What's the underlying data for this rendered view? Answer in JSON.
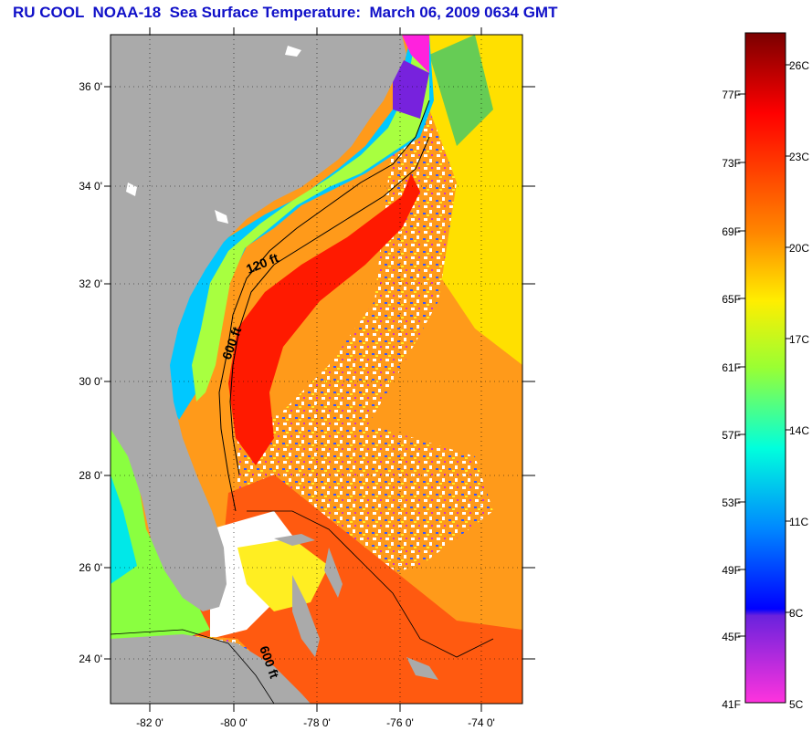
{
  "title": "RU COOL  NOAA-18  Sea Surface Temperature:  March 06, 2009 0634 GMT",
  "map": {
    "lat_labels": [
      "36 0'",
      "34 0'",
      "32 0'",
      "30 0'",
      "28 0'",
      "26 0'",
      "24 0'"
    ],
    "lon_labels": [
      "-82 0'",
      "-80 0'",
      "-78 0'",
      "-76 0'",
      "-74 0'"
    ],
    "isobath_labels": [
      "120 ft",
      "600 ft",
      "600 ft"
    ],
    "land_color": "#aaaaaa",
    "cloud_color": "#ffffff"
  },
  "colorbar": {
    "fahrenheit_labels": [
      "77F",
      "73F",
      "69F",
      "65F",
      "61F",
      "57F",
      "53F",
      "49F",
      "45F",
      "41F"
    ],
    "celsius_labels": [
      "26C",
      "23C",
      "20C",
      "17C",
      "14C",
      "11C",
      "8C",
      "5C"
    ],
    "colors": [
      "#800000",
      "#ff0000",
      "#ff8000",
      "#ffff00",
      "#80ff00",
      "#00ffff",
      "#0080ff",
      "#0000ff",
      "#8000ff",
      "#ff00ff"
    ]
  }
}
